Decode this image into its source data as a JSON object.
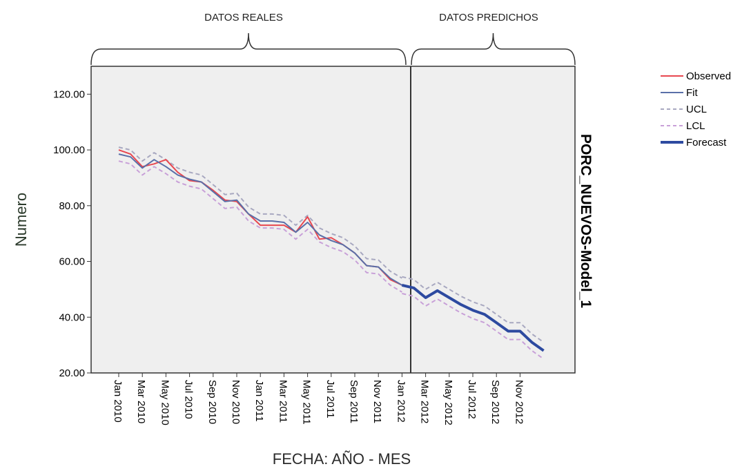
{
  "chart_data": {
    "type": "line",
    "ylabel": "Numero",
    "xlabel": "FECHA: AÑO - MES",
    "side_title": "PORC_NUEVOS-Model_1",
    "sections": [
      {
        "label": "DATOS REALES"
      },
      {
        "label": "DATOS PREDICHOS"
      }
    ],
    "ylim": [
      20,
      130
    ],
    "yticks": [
      20,
      40,
      60,
      80,
      100,
      120
    ],
    "ytick_labels": [
      "20.00",
      "40.00",
      "60.00",
      "80.00",
      "100.00",
      "120.00"
    ],
    "xticks": [
      {
        "i": 0,
        "label": "Jan 2010"
      },
      {
        "i": 2,
        "label": "Mar 2010"
      },
      {
        "i": 4,
        "label": "May 2010"
      },
      {
        "i": 6,
        "label": "Jul 2010"
      },
      {
        "i": 8,
        "label": "Sep 2010"
      },
      {
        "i": 10,
        "label": "Nov 2010"
      },
      {
        "i": 12,
        "label": "Jan 2011"
      },
      {
        "i": 14,
        "label": "Mar 2011"
      },
      {
        "i": 16,
        "label": "May 2011"
      },
      {
        "i": 18,
        "label": "Jul 2011"
      },
      {
        "i": 20,
        "label": "Sep 2011"
      },
      {
        "i": 22,
        "label": "Nov 2011"
      },
      {
        "i": 24,
        "label": "Jan 2012"
      },
      {
        "i": 26,
        "label": "Mar 2012"
      },
      {
        "i": 28,
        "label": "May 2012"
      },
      {
        "i": 30,
        "label": "Jul 2012"
      },
      {
        "i": 32,
        "label": "Sep 2012"
      },
      {
        "i": 34,
        "label": "Nov 2012"
      }
    ],
    "grid": false,
    "legend_position": "top-right",
    "legend": [
      {
        "name": "Observed",
        "color": "#e8474f",
        "style": "solid"
      },
      {
        "name": "Fit",
        "color": "#5a6fa8",
        "style": "solid"
      },
      {
        "name": "UCL",
        "color": "#a8a8c0",
        "style": "dashed"
      },
      {
        "name": "LCL",
        "color": "#c8a0d8",
        "style": "dashed"
      },
      {
        "name": "Forecast",
        "color": "#2d4aa0",
        "style": "thick"
      }
    ],
    "series": [
      {
        "name": "Observed",
        "start": 0,
        "values": [
          100,
          98.5,
          94,
          95,
          96.5,
          92,
          89,
          88.5,
          85.5,
          82,
          81.5,
          77,
          73,
          73,
          73,
          70.5,
          76,
          68,
          68.5,
          66,
          63,
          58.5,
          58,
          53.5,
          51.5
        ]
      },
      {
        "name": "Fit",
        "start": 0,
        "values": [
          98.5,
          97.5,
          93.5,
          96.5,
          94,
          91,
          89.5,
          88.5,
          85,
          81.5,
          82,
          77,
          74.5,
          74.5,
          74,
          70.5,
          74,
          69.5,
          67.5,
          66,
          63,
          58.5,
          58,
          54,
          51.5
        ]
      },
      {
        "name": "UCL",
        "start": 0,
        "values": [
          101,
          100,
          96,
          99,
          96.5,
          93.5,
          92,
          91,
          87.5,
          84,
          84.5,
          79.5,
          77,
          77,
          76.5,
          73,
          76.5,
          72,
          70,
          68.5,
          65.5,
          61,
          60.5,
          56.5,
          54
        ]
      },
      {
        "name": "LCL",
        "start": 0,
        "values": [
          96,
          95,
          91,
          94,
          91.5,
          88.5,
          87,
          86,
          82.5,
          79,
          79.5,
          74.5,
          72,
          72,
          71.5,
          68,
          71.5,
          67,
          65,
          63.5,
          60.5,
          56,
          55.5,
          51.5,
          49
        ]
      },
      {
        "name": "Forecast",
        "start": 24,
        "values": [
          51.5,
          50.5,
          47,
          49.5,
          47,
          44.5,
          42.5,
          41,
          38,
          35,
          35,
          31,
          28
        ]
      },
      {
        "name": "UCL",
        "start": 24,
        "values": [
          54.5,
          53.5,
          50,
          52.5,
          50,
          47.5,
          45.5,
          44,
          41,
          38,
          38,
          34,
          31
        ]
      },
      {
        "name": "LCL",
        "start": 24,
        "values": [
          48.5,
          47.5,
          44,
          46.5,
          44,
          41.5,
          39.5,
          38,
          35,
          32,
          32,
          28,
          25
        ]
      }
    ]
  }
}
